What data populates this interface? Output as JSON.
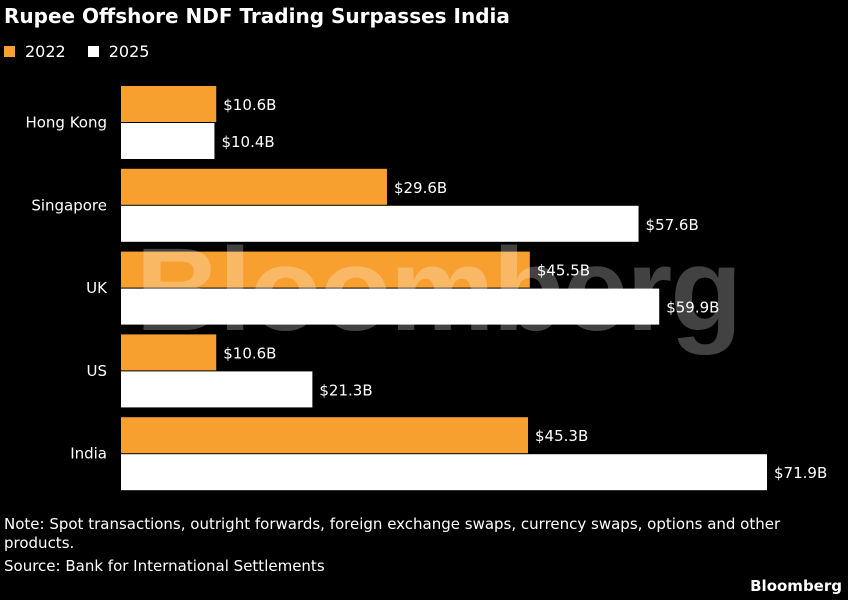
{
  "title": "Rupee Offshore NDF Trading Surpasses India",
  "legend": [
    {
      "label": "2022",
      "color": "#F7A030"
    },
    {
      "label": "2025",
      "color": "#FFFFFF"
    }
  ],
  "chart_data": {
    "type": "bar",
    "orientation": "horizontal",
    "title": "Rupee Offshore NDF Trading Surpasses India",
    "categories": [
      "Hong Kong",
      "Singapore",
      "UK",
      "US",
      "India"
    ],
    "series": [
      {
        "name": "2022",
        "color": "#F7A030",
        "values": [
          10.6,
          29.6,
          45.5,
          10.6,
          45.3
        ],
        "labels": [
          "$10.6B",
          "$29.6B",
          "$45.5B",
          "$10.6B",
          "$45.3B"
        ]
      },
      {
        "name": "2025",
        "color": "#FFFFFF",
        "values": [
          10.4,
          57.6,
          59.9,
          21.3,
          71.9
        ],
        "labels": [
          "$10.4B",
          "$57.6B",
          "$59.9B",
          "$21.3B",
          "$71.9B"
        ]
      }
    ],
    "unit": "USD billions",
    "xlim": [
      0,
      72
    ],
    "grid": false,
    "legend_position": "top-left"
  },
  "watermark": "Bloomberg",
  "note": "Note: Spot transactions, outright forwards, foreign exchange swaps, currency swaps, options and other products.",
  "source": "Source: Bank for International Settlements",
  "brand": "Bloomberg"
}
